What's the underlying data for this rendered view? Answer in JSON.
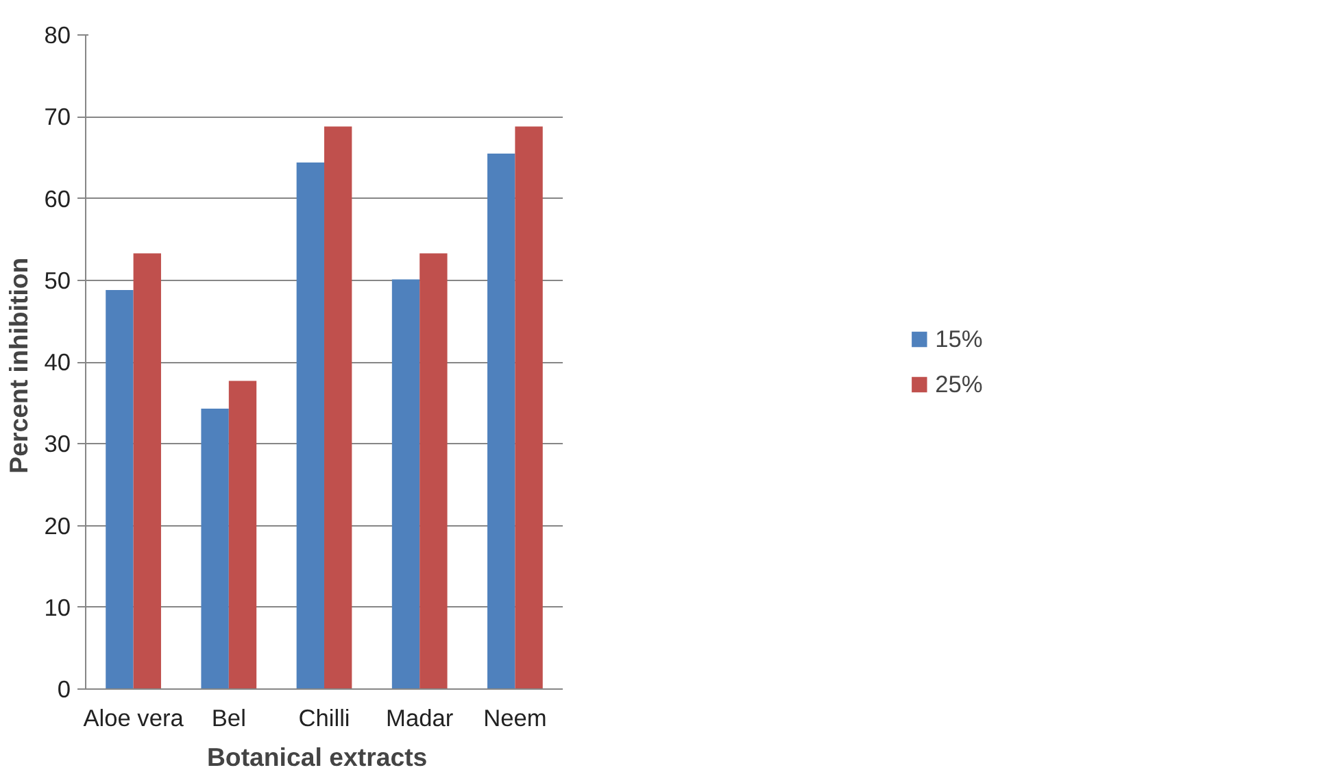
{
  "chart_data": {
    "type": "bar",
    "xlabel": "Botanical   extracts",
    "ylabel": "Percent  inhibition",
    "categories": [
      "Aloe vera",
      "Bel",
      "Chilli",
      "Madar",
      "Neem"
    ],
    "series": [
      {
        "name": "15%",
        "color": "#4f81bd",
        "values": [
          48.8,
          34.3,
          64.4,
          50.1,
          65.5
        ]
      },
      {
        "name": "25%",
        "color": "#c0504d",
        "values": [
          53.3,
          37.7,
          68.8,
          53.3,
          68.8
        ]
      }
    ],
    "ylim": [
      0,
      80
    ],
    "yticks": [
      0,
      10,
      20,
      30,
      40,
      50,
      60,
      70,
      80
    ],
    "grid": "y",
    "legend": "right"
  }
}
